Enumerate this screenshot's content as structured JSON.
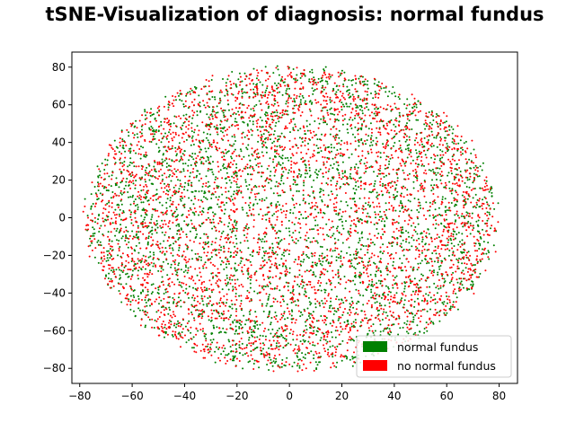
{
  "chart_data": {
    "type": "scatter",
    "title": "tSNE-Visualization of diagnosis: normal fundus",
    "xlabel": "",
    "ylabel": "",
    "xlim": [
      -83,
      87
    ],
    "ylim": [
      -88,
      88
    ],
    "x_ticks": [
      -80,
      -60,
      -40,
      -20,
      0,
      20,
      40,
      60,
      80
    ],
    "y_ticks": [
      -80,
      -60,
      -40,
      -20,
      0,
      20,
      40,
      60,
      80
    ],
    "grid": false,
    "legend_position": "lower-right",
    "cloud": {
      "center": [
        0,
        0
      ],
      "x_extent": [
        -77,
        79
      ],
      "y_extent": [
        -81,
        80
      ],
      "points_per_series": 3400
    },
    "series": [
      {
        "name": "normal fundus",
        "color": "#008000",
        "seed": 11
      },
      {
        "name": "no normal fundus",
        "color": "#ff0000",
        "seed": 29
      }
    ]
  }
}
